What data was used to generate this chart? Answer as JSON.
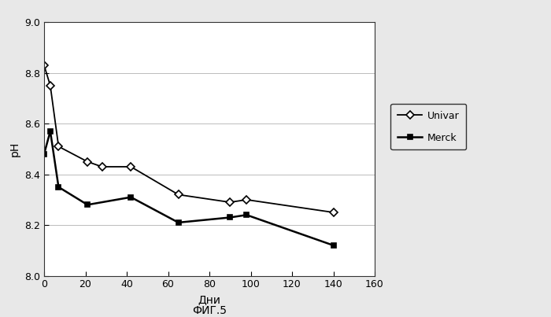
{
  "univar_x": [
    0,
    3,
    7,
    21,
    28,
    42,
    65,
    90,
    98,
    140
  ],
  "univar_y": [
    8.83,
    8.75,
    8.51,
    8.45,
    8.43,
    8.43,
    8.32,
    8.29,
    8.3,
    8.25
  ],
  "merck_x": [
    0,
    3,
    7,
    21,
    42,
    65,
    90,
    98,
    140
  ],
  "merck_y": [
    8.48,
    8.57,
    8.35,
    8.28,
    8.31,
    8.21,
    8.23,
    8.24,
    8.12
  ],
  "xlabel": "Дни",
  "ylabel": "pH",
  "caption": "ФИГ.5",
  "xlim": [
    0,
    160
  ],
  "ylim": [
    8.0,
    9.0
  ],
  "yticks": [
    8.0,
    8.2,
    8.4,
    8.6,
    8.8,
    9.0
  ],
  "xticks": [
    0,
    20,
    40,
    60,
    80,
    100,
    120,
    140,
    160
  ],
  "legend_univar": "Univar",
  "legend_merck": "Merck",
  "line_color": "#000000",
  "bg_color": "#e8e8e8",
  "plot_bg_color": "#ffffff"
}
